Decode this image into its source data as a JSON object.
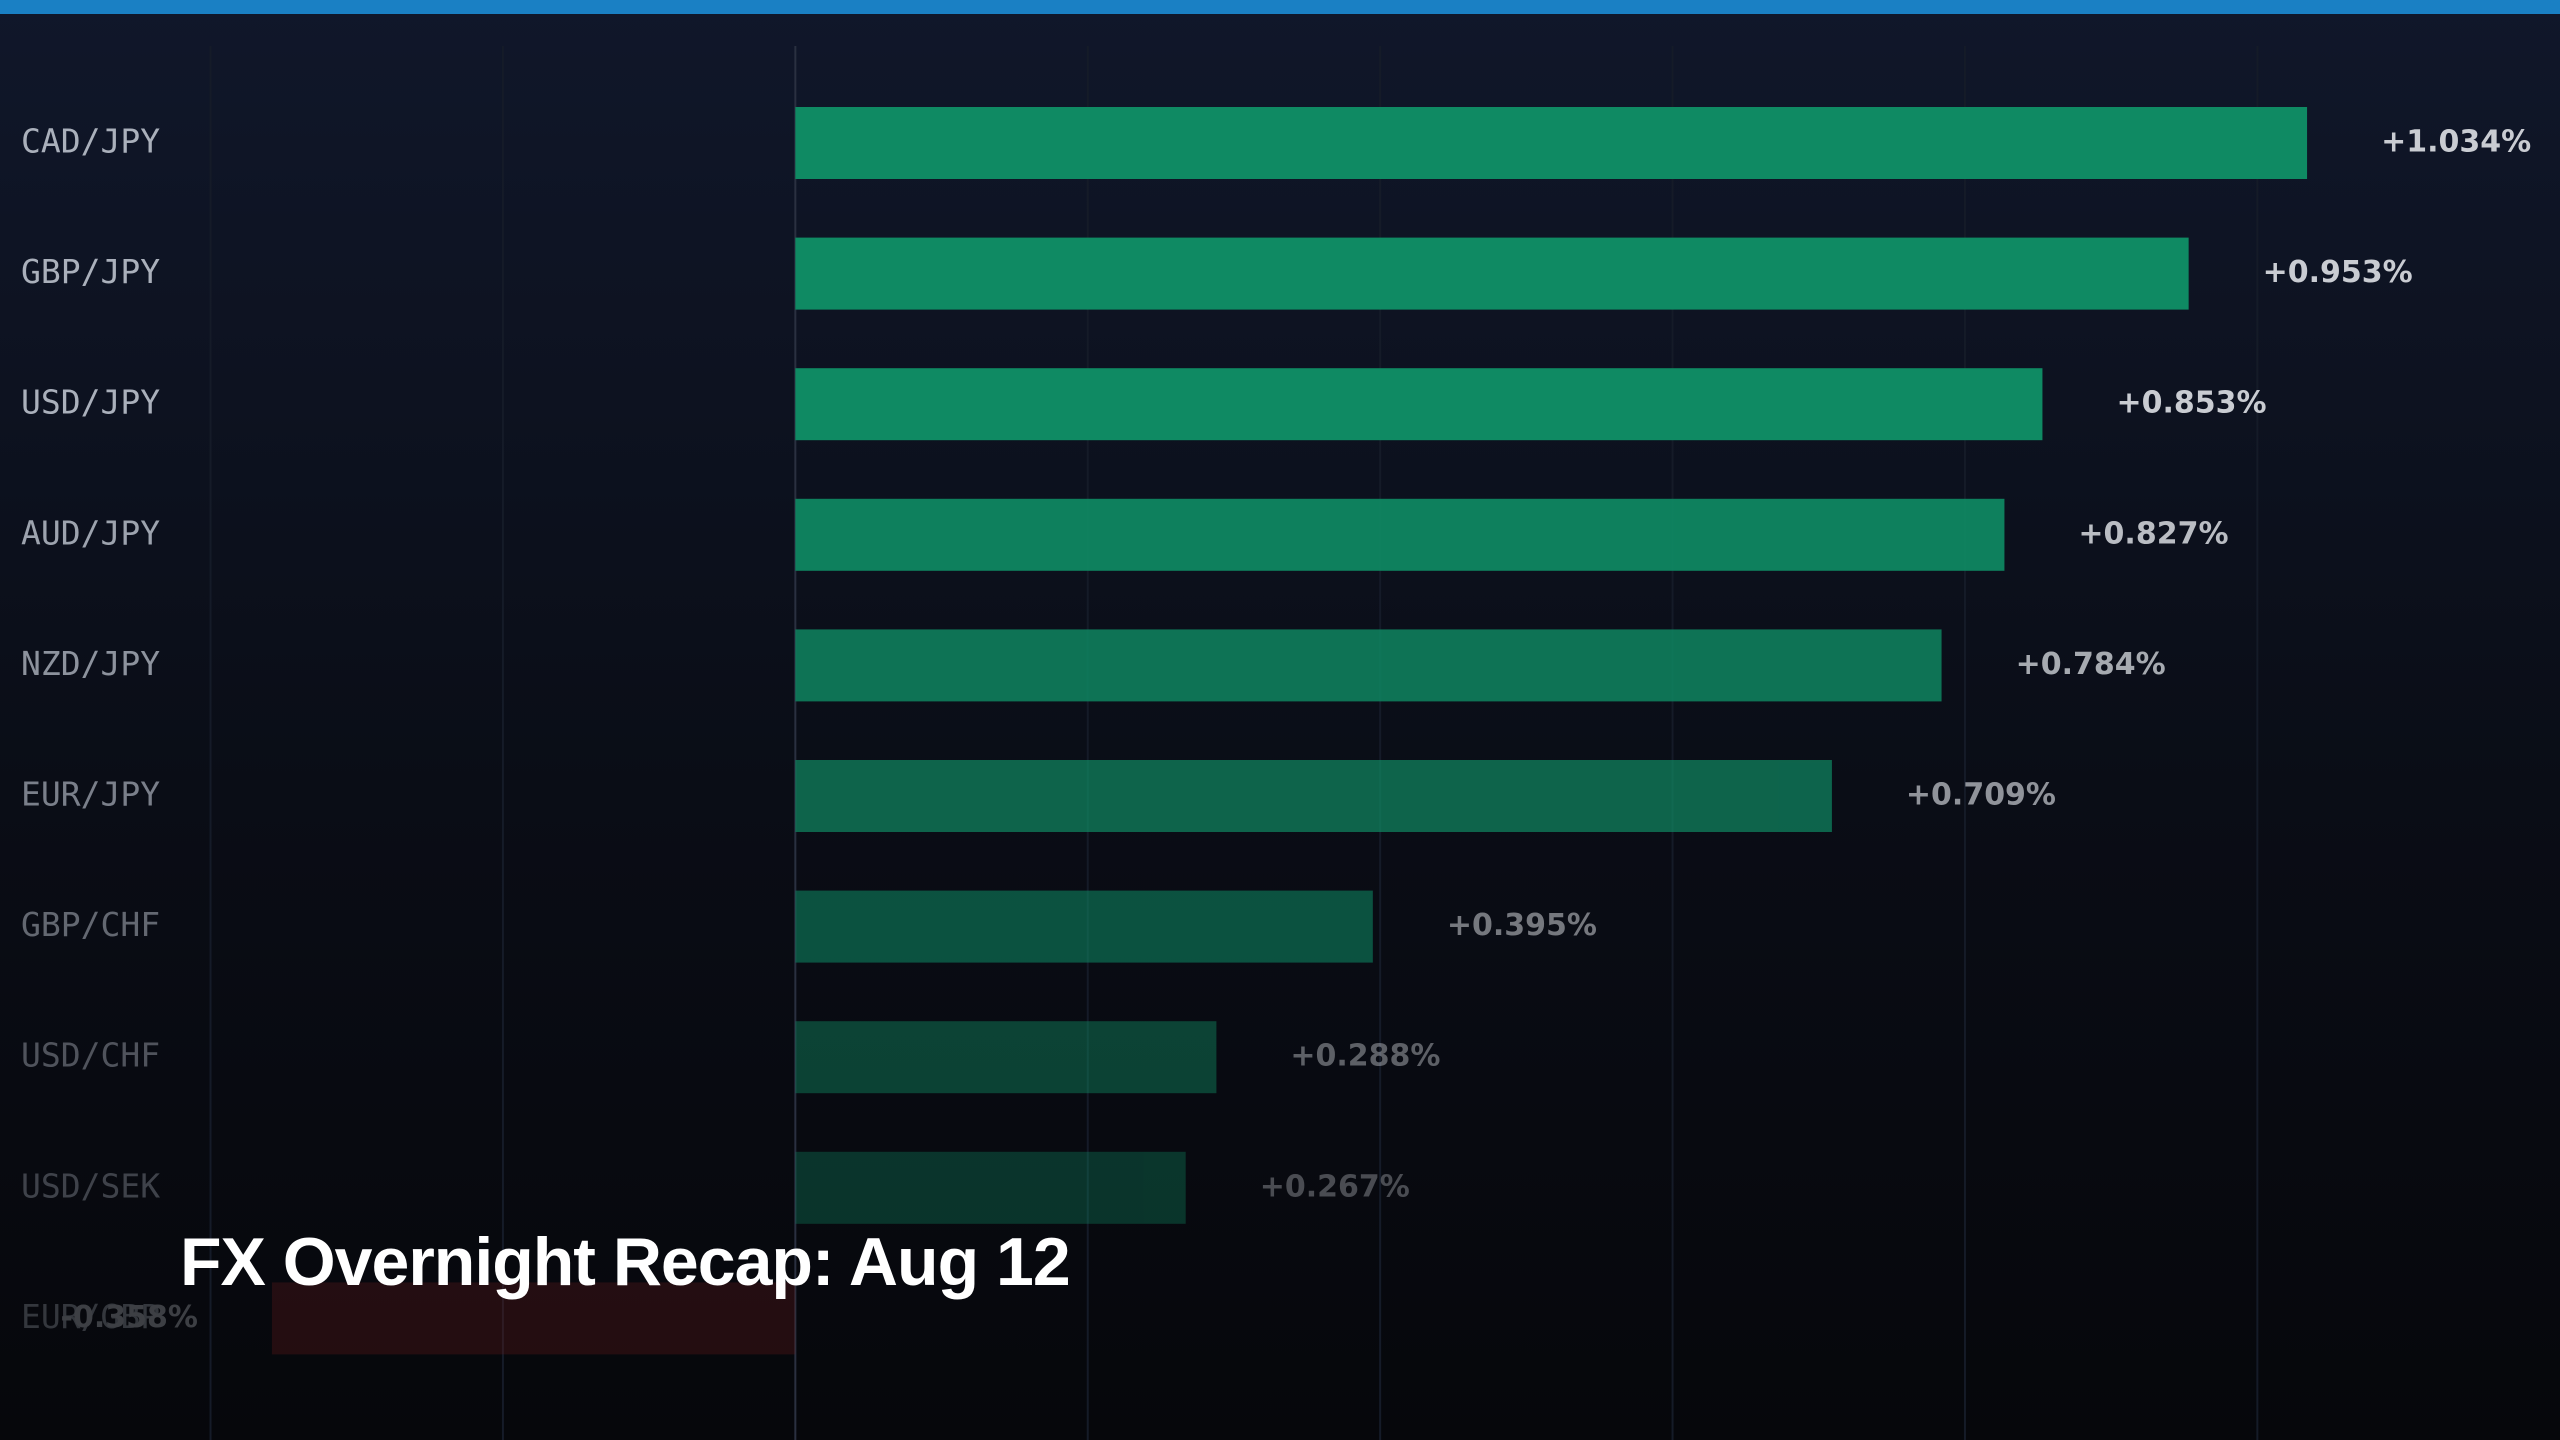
{
  "chart_data": {
    "type": "bar",
    "orientation": "horizontal",
    "title": "FX Overnight Recap: Aug 12",
    "categories": [
      "CAD/JPY",
      "GBP/JPY",
      "USD/JPY",
      "AUD/JPY",
      "NZD/JPY",
      "EUR/JPY",
      "GBP/CHF",
      "USD/CHF",
      "USD/SEK",
      "EUR/GBP"
    ],
    "values": [
      1.034,
      0.953,
      0.853,
      0.827,
      0.784,
      0.709,
      0.395,
      0.288,
      0.267,
      -0.358
    ],
    "value_labels": [
      "+1.034%",
      "+0.953%",
      "+0.853%",
      "+0.827%",
      "+0.784%",
      "+0.709%",
      "+0.395%",
      "+0.288%",
      "+0.267%",
      "-0.358%"
    ],
    "positive_color": "#0f8a63",
    "negative_color": "#6e1c1c",
    "xlim": [
      -0.544,
      1.207
    ],
    "xticks": [
      -0.4,
      -0.2,
      0,
      0.2,
      0.4,
      0.6,
      0.8,
      1.0
    ],
    "grid": true
  }
}
